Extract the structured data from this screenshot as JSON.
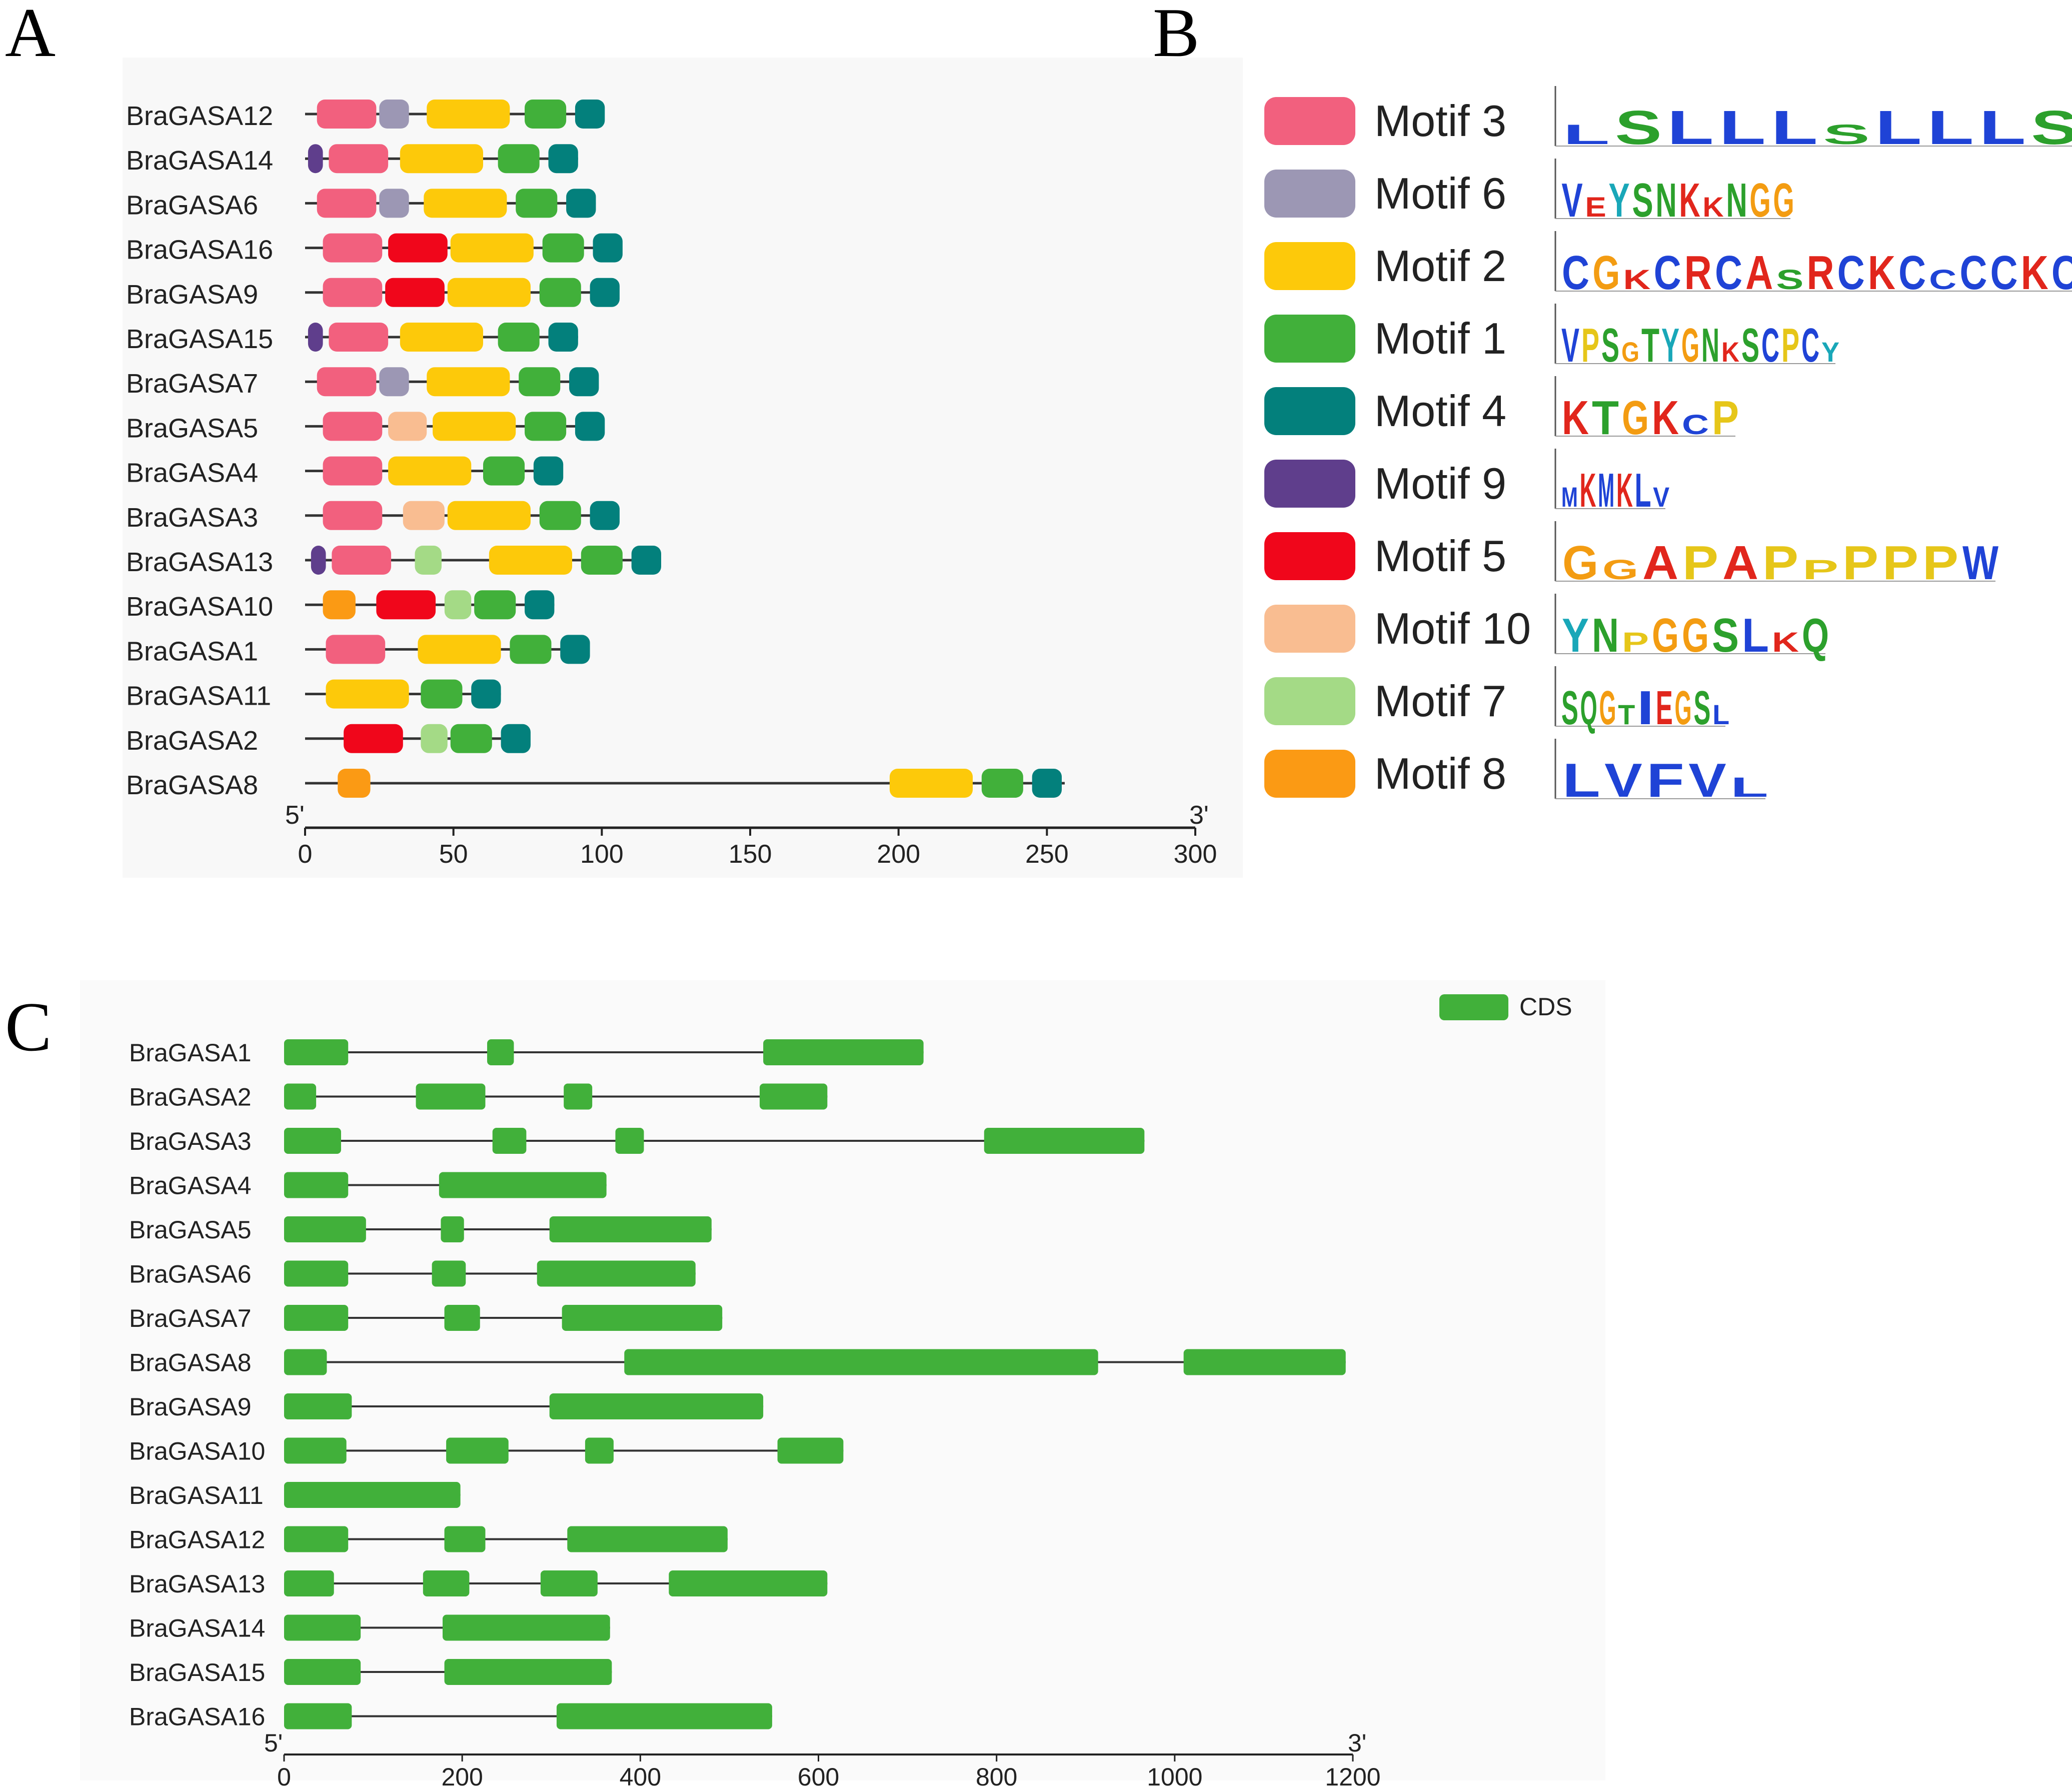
{
  "panels": {
    "A": "A",
    "B": "B",
    "C": "C"
  },
  "colors": {
    "motif3": "#f2607e",
    "motif6": "#9c97b4",
    "motif2": "#fdc90a",
    "motif1": "#41b03a",
    "motif4": "#03807c",
    "motif9": "#5f3e8c",
    "motif5": "#f0061b",
    "motif10": "#f9bd91",
    "motif7": "#a4da86",
    "motif8": "#fb9a14",
    "cds": "#41b03a",
    "line": "#333333"
  },
  "panel_a": {
    "axis": {
      "left_label": "5'",
      "right_label": "3'",
      "min": 0,
      "max": 300,
      "ticks": [
        0,
        50,
        100,
        150,
        200,
        250,
        300
      ]
    },
    "genes": [
      {
        "name": "BraGASA12",
        "length": 100,
        "motifs": [
          {
            "id": "motif3",
            "start": 4,
            "end": 24
          },
          {
            "id": "motif6",
            "start": 25,
            "end": 35
          },
          {
            "id": "motif2",
            "start": 41,
            "end": 69
          },
          {
            "id": "motif1",
            "start": 74,
            "end": 88
          },
          {
            "id": "motif4",
            "start": 91,
            "end": 101
          }
        ]
      },
      {
        "name": "BraGASA14",
        "length": 92,
        "motifs": [
          {
            "id": "motif9",
            "start": 1,
            "end": 6
          },
          {
            "id": "motif3",
            "start": 8,
            "end": 28
          },
          {
            "id": "motif2",
            "start": 32,
            "end": 60
          },
          {
            "id": "motif1",
            "start": 65,
            "end": 79
          },
          {
            "id": "motif4",
            "start": 82,
            "end": 92
          }
        ]
      },
      {
        "name": "BraGASA6",
        "length": 98,
        "motifs": [
          {
            "id": "motif3",
            "start": 4,
            "end": 24
          },
          {
            "id": "motif6",
            "start": 25,
            "end": 35
          },
          {
            "id": "motif2",
            "start": 40,
            "end": 68
          },
          {
            "id": "motif1",
            "start": 71,
            "end": 85
          },
          {
            "id": "motif4",
            "start": 88,
            "end": 98
          }
        ]
      },
      {
        "name": "BraGASA16",
        "length": 106,
        "motifs": [
          {
            "id": "motif3",
            "start": 6,
            "end": 26
          },
          {
            "id": "motif5",
            "start": 28,
            "end": 48
          },
          {
            "id": "motif2",
            "start": 49,
            "end": 77
          },
          {
            "id": "motif1",
            "start": 80,
            "end": 94
          },
          {
            "id": "motif4",
            "start": 97,
            "end": 107
          }
        ]
      },
      {
        "name": "BraGASA9",
        "length": 105,
        "motifs": [
          {
            "id": "motif3",
            "start": 6,
            "end": 26
          },
          {
            "id": "motif5",
            "start": 27,
            "end": 47
          },
          {
            "id": "motif2",
            "start": 48,
            "end": 76
          },
          {
            "id": "motif1",
            "start": 79,
            "end": 93
          },
          {
            "id": "motif4",
            "start": 96,
            "end": 106
          }
        ]
      },
      {
        "name": "BraGASA15",
        "length": 92,
        "motifs": [
          {
            "id": "motif9",
            "start": 1,
            "end": 6
          },
          {
            "id": "motif3",
            "start": 8,
            "end": 28
          },
          {
            "id": "motif2",
            "start": 32,
            "end": 60
          },
          {
            "id": "motif1",
            "start": 65,
            "end": 79
          },
          {
            "id": "motif4",
            "start": 82,
            "end": 92
          }
        ]
      },
      {
        "name": "BraGASA7",
        "length": 98,
        "motifs": [
          {
            "id": "motif3",
            "start": 4,
            "end": 24
          },
          {
            "id": "motif6",
            "start": 25,
            "end": 35
          },
          {
            "id": "motif2",
            "start": 41,
            "end": 69
          },
          {
            "id": "motif1",
            "start": 72,
            "end": 86
          },
          {
            "id": "motif4",
            "start": 89,
            "end": 99
          }
        ]
      },
      {
        "name": "BraGASA5",
        "length": 100,
        "motifs": [
          {
            "id": "motif3",
            "start": 6,
            "end": 26
          },
          {
            "id": "motif10",
            "start": 28,
            "end": 41
          },
          {
            "id": "motif2",
            "start": 43,
            "end": 71
          },
          {
            "id": "motif1",
            "start": 74,
            "end": 88
          },
          {
            "id": "motif4",
            "start": 91,
            "end": 101
          }
        ]
      },
      {
        "name": "BraGASA4",
        "length": 84,
        "motifs": [
          {
            "id": "motif3",
            "start": 6,
            "end": 26
          },
          {
            "id": "motif2",
            "start": 28,
            "end": 56
          },
          {
            "id": "motif1",
            "start": 60,
            "end": 74
          },
          {
            "id": "motif4",
            "start": 77,
            "end": 87
          }
        ]
      },
      {
        "name": "BraGASA3",
        "length": 105,
        "motifs": [
          {
            "id": "motif3",
            "start": 6,
            "end": 26
          },
          {
            "id": "motif10",
            "start": 33,
            "end": 47
          },
          {
            "id": "motif2",
            "start": 48,
            "end": 76
          },
          {
            "id": "motif1",
            "start": 79,
            "end": 93
          },
          {
            "id": "motif4",
            "start": 96,
            "end": 106
          }
        ]
      },
      {
        "name": "BraGASA13",
        "length": 118,
        "motifs": [
          {
            "id": "motif9",
            "start": 2,
            "end": 7
          },
          {
            "id": "motif3",
            "start": 9,
            "end": 29
          },
          {
            "id": "motif7",
            "start": 37,
            "end": 46
          },
          {
            "id": "motif2",
            "start": 62,
            "end": 90
          },
          {
            "id": "motif1",
            "start": 93,
            "end": 107
          },
          {
            "id": "motif4",
            "start": 110,
            "end": 120
          }
        ]
      },
      {
        "name": "BraGASA10",
        "length": 84,
        "motifs": [
          {
            "id": "motif8",
            "start": 6,
            "end": 17
          },
          {
            "id": "motif5",
            "start": 24,
            "end": 44
          },
          {
            "id": "motif7",
            "start": 47,
            "end": 56
          },
          {
            "id": "motif1",
            "start": 57,
            "end": 71
          },
          {
            "id": "motif4",
            "start": 74,
            "end": 84
          }
        ]
      },
      {
        "name": "BraGASA1",
        "length": 95,
        "motifs": [
          {
            "id": "motif3",
            "start": 7,
            "end": 27
          },
          {
            "id": "motif2",
            "start": 38,
            "end": 66
          },
          {
            "id": "motif1",
            "start": 69,
            "end": 83
          },
          {
            "id": "motif4",
            "start": 86,
            "end": 96
          }
        ]
      },
      {
        "name": "BraGASA11",
        "length": 66,
        "motifs": [
          {
            "id": "motif2",
            "start": 7,
            "end": 35
          },
          {
            "id": "motif1",
            "start": 39,
            "end": 53
          },
          {
            "id": "motif4",
            "start": 56,
            "end": 66
          }
        ]
      },
      {
        "name": "BraGASA2",
        "length": 74,
        "motifs": [
          {
            "id": "motif5",
            "start": 13,
            "end": 33
          },
          {
            "id": "motif7",
            "start": 39,
            "end": 48
          },
          {
            "id": "motif1",
            "start": 49,
            "end": 63
          },
          {
            "id": "motif4",
            "start": 66,
            "end": 76
          }
        ]
      },
      {
        "name": "BraGASA8",
        "length": 256,
        "motifs": [
          {
            "id": "motif8",
            "start": 11,
            "end": 22
          },
          {
            "id": "motif2",
            "start": 197,
            "end": 225
          },
          {
            "id": "motif1",
            "start": 228,
            "end": 242
          },
          {
            "id": "motif4",
            "start": 245,
            "end": 255
          }
        ]
      }
    ]
  },
  "panel_b": {
    "legend": [
      {
        "id": "motif3",
        "label": "Motif 3",
        "logo": "LSLLLSLLLS"
      },
      {
        "id": "motif6",
        "label": "Motif 6",
        "logo": "VEYSNKKNGG"
      },
      {
        "id": "motif2",
        "label": "Motif 2",
        "logo": "CGKCRCASRCKCCCCKC"
      },
      {
        "id": "motif1",
        "label": "Motif 1",
        "logo": "VPSGTYGNKSCPCY"
      },
      {
        "id": "motif4",
        "label": "Motif 4",
        "logo": "KTGKCP"
      },
      {
        "id": "motif9",
        "label": "Motif 9",
        "logo": "MKMKLV"
      },
      {
        "id": "motif5",
        "label": "Motif 5",
        "logo": "GGAPAPPPPPW"
      },
      {
        "id": "motif10",
        "label": "Motif 10",
        "logo": "YNPGGSLKQ"
      },
      {
        "id": "motif7",
        "label": "Motif 7",
        "logo": "SQGTIEGSL"
      },
      {
        "id": "motif8",
        "label": "Motif 8",
        "logo": "LVFVL"
      }
    ]
  },
  "panel_c": {
    "legend_label": "CDS",
    "axis": {
      "left_label": "5'",
      "right_label": "3'",
      "min": 0,
      "max": 1200,
      "ticks": [
        0,
        200,
        400,
        600,
        800,
        1000,
        1200
      ]
    },
    "genes": [
      {
        "name": "BraGASA1",
        "length": 718,
        "exons": [
          [
            0,
            72
          ],
          [
            228,
            258
          ],
          [
            538,
            718
          ]
        ]
      },
      {
        "name": "BraGASA2",
        "length": 610,
        "exons": [
          [
            0,
            36
          ],
          [
            148,
            226
          ],
          [
            314,
            346
          ],
          [
            534,
            610
          ]
        ]
      },
      {
        "name": "BraGASA3",
        "length": 966,
        "exons": [
          [
            0,
            64
          ],
          [
            234,
            272
          ],
          [
            372,
            404
          ],
          [
            786,
            966
          ]
        ]
      },
      {
        "name": "BraGASA4",
        "length": 362,
        "exons": [
          [
            0,
            72
          ],
          [
            174,
            362
          ]
        ]
      },
      {
        "name": "BraGASA5",
        "length": 480,
        "exons": [
          [
            0,
            92
          ],
          [
            176,
            202
          ],
          [
            298,
            480
          ]
        ]
      },
      {
        "name": "BraGASA6",
        "length": 462,
        "exons": [
          [
            0,
            72
          ],
          [
            166,
            204
          ],
          [
            284,
            462
          ]
        ]
      },
      {
        "name": "BraGASA7",
        "length": 492,
        "exons": [
          [
            0,
            72
          ],
          [
            180,
            220
          ],
          [
            312,
            492
          ]
        ]
      },
      {
        "name": "BraGASA8",
        "length": 1192,
        "exons": [
          [
            0,
            48
          ],
          [
            382,
            914
          ],
          [
            1010,
            1192
          ]
        ]
      },
      {
        "name": "BraGASA9",
        "length": 538,
        "exons": [
          [
            0,
            76
          ],
          [
            298,
            538
          ]
        ]
      },
      {
        "name": "BraGASA10",
        "length": 628,
        "exons": [
          [
            0,
            70
          ],
          [
            182,
            252
          ],
          [
            338,
            370
          ],
          [
            554,
            628
          ]
        ]
      },
      {
        "name": "BraGASA11",
        "length": 198,
        "exons": [
          [
            0,
            198
          ]
        ]
      },
      {
        "name": "BraGASA12",
        "length": 498,
        "exons": [
          [
            0,
            72
          ],
          [
            180,
            226
          ],
          [
            318,
            498
          ]
        ]
      },
      {
        "name": "BraGASA13",
        "length": 610,
        "exons": [
          [
            0,
            56
          ],
          [
            156,
            208
          ],
          [
            288,
            352
          ],
          [
            432,
            610
          ]
        ]
      },
      {
        "name": "BraGASA14",
        "length": 366,
        "exons": [
          [
            0,
            86
          ],
          [
            178,
            366
          ]
        ]
      },
      {
        "name": "BraGASA15",
        "length": 368,
        "exons": [
          [
            0,
            86
          ],
          [
            180,
            368
          ]
        ]
      },
      {
        "name": "BraGASA16",
        "length": 548,
        "exons": [
          [
            0,
            76
          ],
          [
            306,
            548
          ]
        ]
      }
    ]
  }
}
